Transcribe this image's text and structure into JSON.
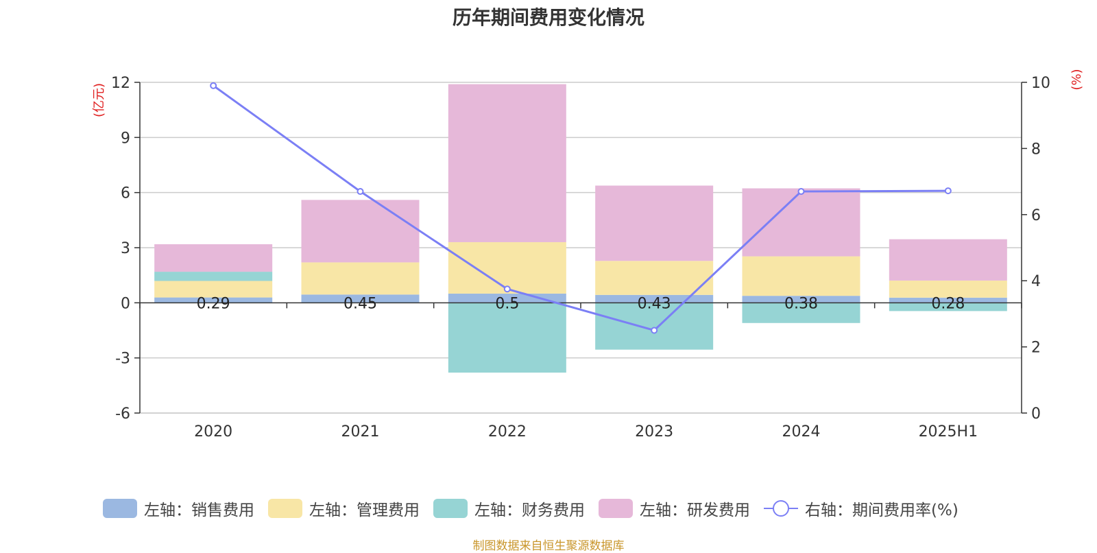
{
  "title": "历年期间费用变化情况",
  "source_note": "制图数据来自恒生聚源数据库",
  "chart_data": {
    "type": "bar",
    "stacked": true,
    "title": "历年期间费用变化情况",
    "categories": [
      "2020",
      "2021",
      "2022",
      "2023",
      "2024",
      "2025H1"
    ],
    "left_axis": {
      "label": "(亿元)",
      "ylim": [
        -6,
        12
      ],
      "ticks": [
        "-6",
        "-3",
        "0",
        "3",
        "6",
        "9",
        "12"
      ]
    },
    "right_axis": {
      "label": "(%)",
      "ylim": [
        0,
        10
      ],
      "ticks": [
        "0",
        "2",
        "4",
        "6",
        "8",
        "10"
      ]
    },
    "series": [
      {
        "name": "左轴：销售费用",
        "type": "bar",
        "axis": "left",
        "color": "#9bb8e1",
        "values": [
          0.29,
          0.45,
          0.5,
          0.43,
          0.38,
          0.28
        ]
      },
      {
        "name": "左轴：管理费用",
        "type": "bar",
        "axis": "left",
        "color": "#f8e6a6",
        "values": [
          0.9,
          1.75,
          2.8,
          1.85,
          2.15,
          0.93
        ]
      },
      {
        "name": "左轴：财务费用",
        "type": "bar",
        "axis": "left",
        "color": "#96d4d4",
        "values": [
          0.5,
          0,
          -3.8,
          -2.55,
          -1.1,
          -0.45
        ]
      },
      {
        "name": "左轴：研发费用",
        "type": "bar",
        "axis": "left",
        "color": "#e6b8d9",
        "values": [
          1.5,
          3.4,
          8.6,
          4.1,
          3.7,
          2.25
        ]
      },
      {
        "name": "右轴：期间费用率(%)",
        "type": "line",
        "axis": "right",
        "color": "#7b7ff5",
        "values": [
          9.9,
          6.7,
          3.75,
          2.5,
          6.7,
          6.72
        ]
      }
    ],
    "data_labels": [
      "0.29",
      "0.45",
      "0.5",
      "0.43",
      "0.38",
      "0.28"
    ],
    "grid": true,
    "legend_position": "bottom"
  }
}
